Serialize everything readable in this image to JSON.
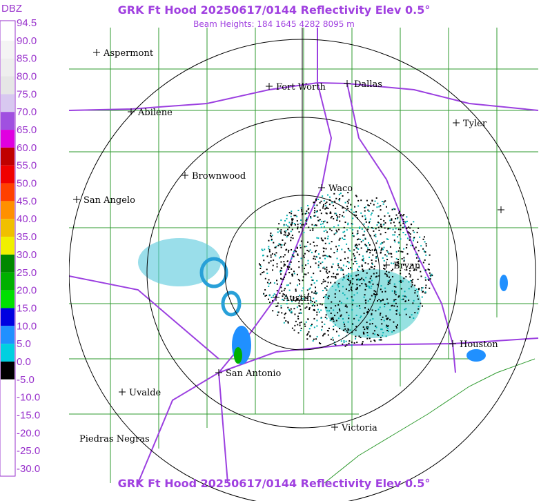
{
  "header": {
    "title": "GRK Ft Hood 20250617/0144 Reflectivity Elev 0.5°",
    "subtitle": "Beam Heights: 184 1645 4282 8095 m",
    "footer": "GRK Ft Hood 20250617/0144 Reflectivity Elev 0.5°"
  },
  "legend": {
    "unit": "DBZ",
    "scale": [
      {
        "label": "94.5",
        "color": "#ffffff"
      },
      {
        "label": "90.0",
        "color": "#f4f4f4"
      },
      {
        "label": "85.0",
        "color": "#eeeeee"
      },
      {
        "label": "80.0",
        "color": "#e6e6e6"
      },
      {
        "label": "75.0",
        "color": "#d8c8f0"
      },
      {
        "label": "70.0",
        "color": "#a050e0"
      },
      {
        "label": "65.0",
        "color": "#e000e0"
      },
      {
        "label": "60.0",
        "color": "#c00000"
      },
      {
        "label": "55.0",
        "color": "#f00000"
      },
      {
        "label": "50.0",
        "color": "#ff4000"
      },
      {
        "label": "45.0",
        "color": "#ff9000"
      },
      {
        "label": "40.0",
        "color": "#f0c000"
      },
      {
        "label": "35.0",
        "color": "#f0f000"
      },
      {
        "label": "30.0",
        "color": "#008800"
      },
      {
        "label": "25.0",
        "color": "#00b000"
      },
      {
        "label": "20.0",
        "color": "#00e000"
      },
      {
        "label": "15.0",
        "color": "#0000e0"
      },
      {
        "label": "10.0",
        "color": "#2090ff"
      },
      {
        "label": "5.0",
        "color": "#00d0e0"
      },
      {
        "label": "0.0",
        "color": "#000000"
      },
      {
        "label": "-5.0",
        "color": "#ffffff"
      },
      {
        "label": "-10.0",
        "color": "#ffffff"
      },
      {
        "label": "-15.0",
        "color": "#ffffff"
      },
      {
        "label": "-20.0",
        "color": "#ffffff"
      },
      {
        "label": "-25.0",
        "color": "#ffffff"
      },
      {
        "label": "-30.0",
        "color": "#ffffff"
      }
    ]
  },
  "cities": [
    "Aspermont",
    "Abilene",
    "Fort Worth",
    "Dallas",
    "Tyler",
    "Brownwood",
    "Waco",
    "San Angelo",
    "Bryan",
    "Austin",
    "Houston",
    "San Antonio",
    "Uvalde",
    "Victoria",
    "Piedras Negras"
  ]
}
